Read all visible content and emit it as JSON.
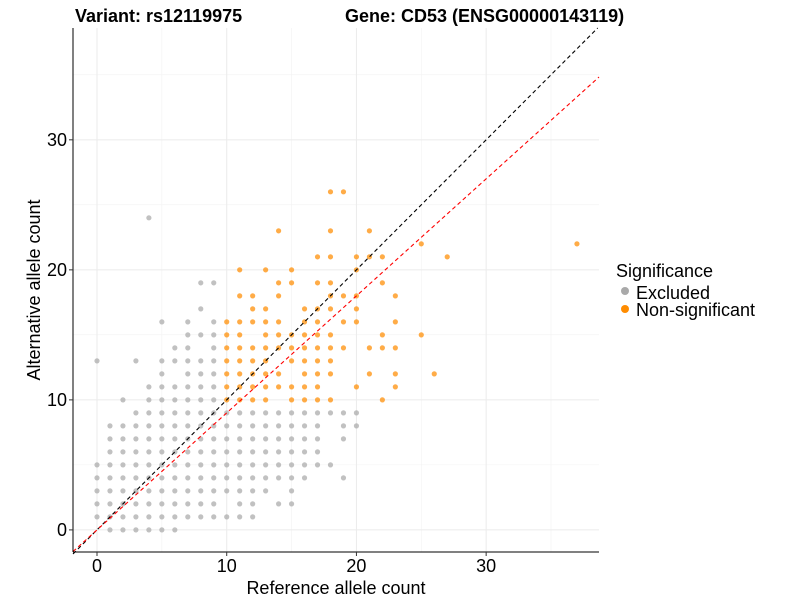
{
  "chart_data": {
    "type": "scatter",
    "title_left": "Variant: rs12119975",
    "title_right": "Gene: CD53 (ENSG00000143119)",
    "xlabel": "Reference allele count",
    "ylabel": "Alternative allele count",
    "xlim": [
      -1.85,
      38.7
    ],
    "ylim": [
      -1.7,
      38.6
    ],
    "xticks": [
      0,
      10,
      20,
      30
    ],
    "yticks": [
      0,
      10,
      20,
      30
    ],
    "minor_grid": [
      5,
      15,
      25,
      35
    ],
    "grid": true,
    "legend": {
      "title": "Significance",
      "placement": "right",
      "entries": [
        {
          "name": "Excluded",
          "color": "#a9a9a9"
        },
        {
          "name": "Non-significant",
          "color": "#ff8c00"
        }
      ]
    },
    "reference_lines": [
      {
        "name": "identity",
        "slope": 1.0,
        "intercept": 0,
        "color": "#000000"
      },
      {
        "name": "fit",
        "slope": 0.9,
        "intercept": 0,
        "color": "#ff0000"
      }
    ],
    "series": [
      {
        "name": "Excluded",
        "color": "#a9a9a9",
        "rows": [
          {
            "y": 24,
            "x": [
              4
            ]
          },
          {
            "y": 19,
            "x": [
              8,
              9
            ]
          },
          {
            "y": 17,
            "x": [
              8
            ]
          },
          {
            "y": 16,
            "x": [
              5,
              7,
              9
            ]
          },
          {
            "y": 15,
            "x": [
              7,
              8,
              9
            ]
          },
          {
            "y": 14,
            "x": [
              6,
              7,
              9
            ]
          },
          {
            "y": 13,
            "x": [
              0,
              3,
              5,
              6,
              7,
              8,
              9
            ]
          },
          {
            "y": 12,
            "x": [
              5,
              7,
              8,
              9
            ]
          },
          {
            "y": 11,
            "x": [
              4,
              5,
              6,
              7,
              8,
              9
            ]
          },
          {
            "y": 10,
            "x": [
              2,
              4,
              5,
              6,
              7,
              8,
              9
            ]
          },
          {
            "y": 9,
            "x": [
              3,
              4,
              5,
              6,
              7,
              8,
              9,
              10,
              11,
              12,
              13,
              14,
              15,
              16,
              17,
              18,
              19,
              20
            ]
          },
          {
            "y": 8,
            "x": [
              1,
              2,
              3,
              4,
              5,
              6,
              7,
              8,
              9,
              10,
              11,
              12,
              13,
              14,
              15,
              16,
              17,
              19,
              20
            ]
          },
          {
            "y": 7,
            "x": [
              1,
              2,
              3,
              4,
              5,
              6,
              7,
              8,
              9,
              10,
              11,
              12,
              13,
              14,
              15,
              16,
              17,
              19
            ]
          },
          {
            "y": 6,
            "x": [
              1,
              2,
              3,
              4,
              5,
              6,
              7,
              8,
              9,
              10,
              11,
              12,
              13,
              14,
              15,
              16,
              17
            ]
          },
          {
            "y": 5,
            "x": [
              0,
              1,
              2,
              3,
              4,
              5,
              6,
              7,
              8,
              9,
              10,
              11,
              12,
              13,
              14,
              15,
              16,
              17,
              18
            ]
          },
          {
            "y": 4,
            "x": [
              0,
              1,
              2,
              3,
              4,
              5,
              6,
              7,
              8,
              9,
              10,
              11,
              12,
              13,
              14,
              15,
              16,
              19
            ]
          },
          {
            "y": 3,
            "x": [
              0,
              1,
              2,
              3,
              4,
              5,
              6,
              7,
              8,
              9,
              10,
              11,
              12,
              13,
              15
            ]
          },
          {
            "y": 2,
            "x": [
              0,
              1,
              2,
              3,
              4,
              5,
              6,
              7,
              8,
              9,
              11,
              12,
              14,
              15
            ]
          },
          {
            "y": 1,
            "x": [
              0,
              1,
              2,
              3,
              4,
              5,
              6,
              7,
              8,
              9,
              10,
              11,
              12
            ]
          },
          {
            "y": 0,
            "x": [
              1,
              2,
              3,
              4,
              5,
              6
            ]
          }
        ]
      },
      {
        "name": "Non-significant",
        "color": "#ff8c00",
        "rows": [
          {
            "y": 26,
            "x": [
              18,
              19
            ]
          },
          {
            "y": 23,
            "x": [
              14,
              18,
              21
            ]
          },
          {
            "y": 22,
            "x": [
              25,
              37
            ]
          },
          {
            "y": 21,
            "x": [
              17,
              18,
              20,
              21,
              22,
              27
            ]
          },
          {
            "y": 20,
            "x": [
              11,
              13,
              15,
              20
            ]
          },
          {
            "y": 19,
            "x": [
              14,
              15,
              17,
              18,
              22
            ]
          },
          {
            "y": 18,
            "x": [
              11,
              12,
              14,
              18,
              19,
              20,
              23
            ]
          },
          {
            "y": 17,
            "x": [
              12,
              13,
              16,
              17,
              18,
              20
            ]
          },
          {
            "y": 16,
            "x": [
              10,
              11,
              12,
              13,
              14,
              16,
              17,
              19,
              20,
              23
            ]
          },
          {
            "y": 15,
            "x": [
              10,
              11,
              13,
              14,
              15,
              16,
              17,
              18,
              22,
              25
            ]
          },
          {
            "y": 14,
            "x": [
              10,
              11,
              12,
              13,
              14,
              15,
              16,
              17,
              18,
              19,
              21,
              22,
              23
            ]
          },
          {
            "y": 13,
            "x": [
              10,
              11,
              12,
              13,
              15,
              16,
              17,
              18
            ]
          },
          {
            "y": 12,
            "x": [
              10,
              11,
              12,
              13,
              14,
              16,
              17,
              18,
              21,
              23,
              26
            ]
          },
          {
            "y": 11,
            "x": [
              10,
              11,
              12,
              13,
              14,
              15,
              16,
              17,
              20,
              23
            ]
          },
          {
            "y": 10,
            "x": [
              10,
              11,
              12,
              13,
              15,
              16,
              17,
              18,
              22
            ]
          }
        ]
      }
    ]
  }
}
